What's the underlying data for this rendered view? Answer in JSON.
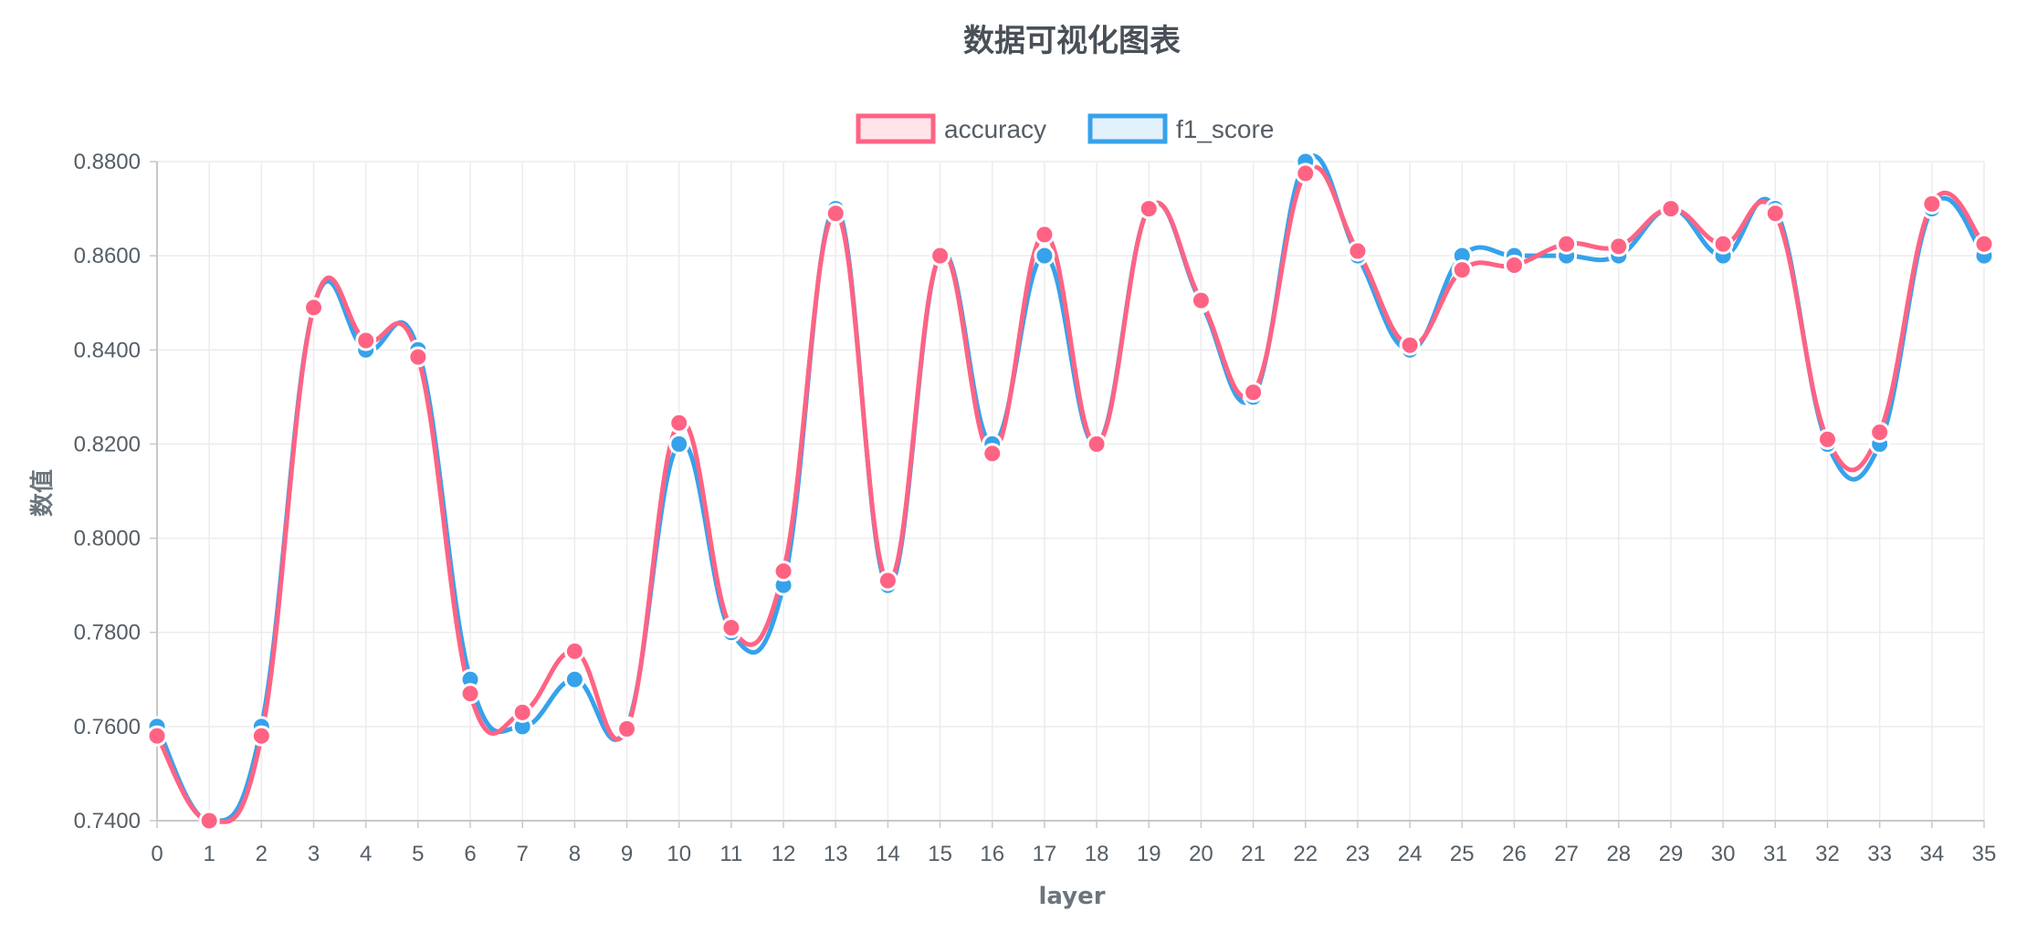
{
  "chart_data": {
    "type": "line",
    "title": "数据可视化图表",
    "xlabel": "layer",
    "ylabel": "数值",
    "x": [
      "0",
      "1",
      "2",
      "3",
      "4",
      "5",
      "6",
      "7",
      "8",
      "9",
      "10",
      "11",
      "12",
      "13",
      "14",
      "15",
      "16",
      "17",
      "18",
      "19",
      "20",
      "21",
      "22",
      "23",
      "24",
      "25",
      "26",
      "27",
      "28",
      "29",
      "30",
      "31",
      "32",
      "33",
      "34",
      "35"
    ],
    "ylim": [
      0.74,
      0.88
    ],
    "yticks": [
      "0.7400",
      "0.7600",
      "0.7800",
      "0.8000",
      "0.8200",
      "0.8400",
      "0.8600",
      "0.8800"
    ],
    "grid": true,
    "legend_position": "top",
    "series": [
      {
        "name": "f1_score",
        "color": "#36a2eb",
        "fill": "#e3f1fc",
        "values": [
          0.76,
          0.74,
          0.76,
          0.849,
          0.84,
          0.84,
          0.77,
          0.76,
          0.77,
          0.76,
          0.82,
          0.78,
          0.79,
          0.87,
          0.79,
          0.86,
          0.82,
          0.86,
          0.82,
          0.87,
          0.85,
          0.83,
          0.88,
          0.86,
          0.84,
          0.86,
          0.86,
          0.86,
          0.86,
          0.87,
          0.86,
          0.87,
          0.82,
          0.82,
          0.87,
          0.86
        ]
      },
      {
        "name": "accuracy",
        "color": "#ff6384",
        "fill": "#ffe5ea",
        "values": [
          0.758,
          0.74,
          0.758,
          0.849,
          0.842,
          0.8385,
          0.767,
          0.763,
          0.776,
          0.7595,
          0.8245,
          0.781,
          0.793,
          0.869,
          0.791,
          0.86,
          0.818,
          0.8645,
          0.82,
          0.87,
          0.8505,
          0.831,
          0.8775,
          0.861,
          0.841,
          0.857,
          0.858,
          0.8625,
          0.862,
          0.87,
          0.8625,
          0.869,
          0.821,
          0.8225,
          0.871,
          0.8625
        ]
      }
    ]
  }
}
